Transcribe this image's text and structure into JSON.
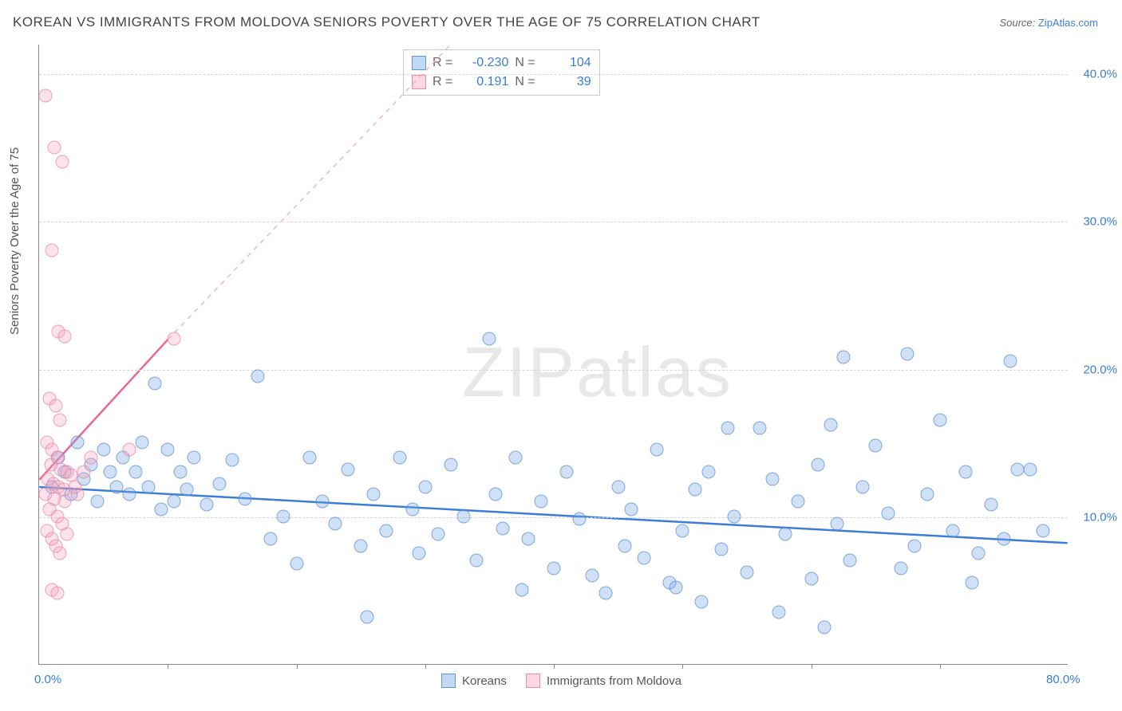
{
  "title": "KOREAN VS IMMIGRANTS FROM MOLDOVA SENIORS POVERTY OVER THE AGE OF 75 CORRELATION CHART",
  "source_prefix": "Source: ",
  "source_link": "ZipAtlas.com",
  "ylabel": "Seniors Poverty Over the Age of 75",
  "watermark_a": "ZIP",
  "watermark_b": "atlas",
  "chart": {
    "type": "scatter",
    "xlim": [
      0,
      80
    ],
    "ylim": [
      0,
      42
    ],
    "ytick_values": [
      10,
      20,
      30,
      40
    ],
    "ytick_labels": [
      "10.0%",
      "20.0%",
      "30.0%",
      "40.0%"
    ],
    "xtick_values": [
      0,
      10,
      20,
      30,
      40,
      50,
      60,
      70,
      80
    ],
    "xtick_labels": [
      "0.0%",
      "",
      "",
      "",
      "",
      "",
      "",
      "",
      "80.0%"
    ],
    "grid_color": "#d5d5d5",
    "background_color": "#ffffff",
    "axis_color": "#888888",
    "tick_color": "#3b7dd8",
    "series": [
      {
        "name": "Koreans",
        "color_fill": "rgba(120,170,230,0.35)",
        "color_stroke": "rgba(90,140,210,0.7)",
        "marker_size": 17,
        "R": "-0.230",
        "N": "104",
        "trend": {
          "x1": 0,
          "y1": 12.0,
          "x2": 80,
          "y2": 8.2,
          "dash": false,
          "color": "#3b7dd8",
          "width": 2.5
        },
        "points": [
          [
            1,
            12
          ],
          [
            1.5,
            14
          ],
          [
            2,
            13
          ],
          [
            2.5,
            11.5
          ],
          [
            3,
            15
          ],
          [
            3.5,
            12.5
          ],
          [
            4,
            13.5
          ],
          [
            4.5,
            11
          ],
          [
            5,
            14.5
          ],
          [
            5.5,
            13
          ],
          [
            6,
            12
          ],
          [
            6.5,
            14
          ],
          [
            7,
            11.5
          ],
          [
            7.5,
            13
          ],
          [
            8,
            15
          ],
          [
            8.5,
            12
          ],
          [
            9,
            19
          ],
          [
            9.5,
            10.5
          ],
          [
            10,
            14.5
          ],
          [
            10.5,
            11
          ],
          [
            11,
            13
          ],
          [
            11.5,
            11.8
          ],
          [
            12,
            14
          ],
          [
            13,
            10.8
          ],
          [
            14,
            12.2
          ],
          [
            15,
            13.8
          ],
          [
            16,
            11.2
          ],
          [
            17,
            19.5
          ],
          [
            18,
            8.5
          ],
          [
            19,
            10
          ],
          [
            20,
            6.8
          ],
          [
            21,
            14
          ],
          [
            22,
            11
          ],
          [
            23,
            9.5
          ],
          [
            24,
            13.2
          ],
          [
            25,
            8
          ],
          [
            25.5,
            3.2
          ],
          [
            26,
            11.5
          ],
          [
            27,
            9
          ],
          [
            28,
            14
          ],
          [
            29,
            10.5
          ],
          [
            29.5,
            7.5
          ],
          [
            30,
            12
          ],
          [
            31,
            8.8
          ],
          [
            32,
            13.5
          ],
          [
            33,
            10
          ],
          [
            34,
            7
          ],
          [
            35,
            22
          ],
          [
            35.5,
            11.5
          ],
          [
            36,
            9.2
          ],
          [
            37,
            14
          ],
          [
            37.5,
            5
          ],
          [
            38,
            8.5
          ],
          [
            39,
            11
          ],
          [
            40,
            6.5
          ],
          [
            41,
            13
          ],
          [
            42,
            9.8
          ],
          [
            43,
            6
          ],
          [
            44,
            4.8
          ],
          [
            45,
            12
          ],
          [
            45.5,
            8
          ],
          [
            46,
            10.5
          ],
          [
            47,
            7.2
          ],
          [
            48,
            14.5
          ],
          [
            49,
            5.5
          ],
          [
            50,
            9
          ],
          [
            51,
            11.8
          ],
          [
            51.5,
            4.2
          ],
          [
            52,
            13
          ],
          [
            53,
            7.8
          ],
          [
            54,
            10
          ],
          [
            55,
            6.2
          ],
          [
            56,
            16
          ],
          [
            57,
            12.5
          ],
          [
            57.5,
            3.5
          ],
          [
            58,
            8.8
          ],
          [
            59,
            11
          ],
          [
            60,
            5.8
          ],
          [
            60.5,
            13.5
          ],
          [
            61,
            2.5
          ],
          [
            61.5,
            16.2
          ],
          [
            62,
            9.5
          ],
          [
            63,
            7
          ],
          [
            64,
            12
          ],
          [
            65,
            14.8
          ],
          [
            66,
            10.2
          ],
          [
            67,
            6.5
          ],
          [
            67.5,
            21
          ],
          [
            68,
            8
          ],
          [
            69,
            11.5
          ],
          [
            70,
            16.5
          ],
          [
            71,
            9
          ],
          [
            72,
            13
          ],
          [
            72.5,
            5.5
          ],
          [
            73,
            7.5
          ],
          [
            74,
            10.8
          ],
          [
            75,
            8.5
          ],
          [
            75.5,
            20.5
          ],
          [
            76,
            13.2
          ],
          [
            78,
            9
          ],
          [
            77,
            13.2
          ],
          [
            62.5,
            20.8
          ],
          [
            49.5,
            5.2
          ],
          [
            53.5,
            16
          ]
        ]
      },
      {
        "name": "Immigrants from Moldova",
        "color_fill": "rgba(245,160,185,0.3)",
        "color_stroke": "rgba(235,130,160,0.7)",
        "marker_size": 17,
        "R": "0.191",
        "N": "39",
        "trend_solid": {
          "x1": 0,
          "y1": 12.5,
          "x2": 10,
          "y2": 22,
          "dash": false,
          "color": "#e86a92",
          "width": 2.5
        },
        "trend_dash": {
          "x1": 10,
          "y1": 22,
          "x2": 32,
          "y2": 42,
          "dash": true,
          "color": "#f0b5c5",
          "width": 1.5
        },
        "points": [
          [
            0.5,
            38.5
          ],
          [
            1.2,
            35
          ],
          [
            1.8,
            34
          ],
          [
            1,
            28
          ],
          [
            1.5,
            22.5
          ],
          [
            2,
            22.2
          ],
          [
            0.8,
            18
          ],
          [
            1.3,
            17.5
          ],
          [
            1.6,
            16.5
          ],
          [
            0.6,
            15
          ],
          [
            1,
            14.5
          ],
          [
            1.4,
            14
          ],
          [
            0.9,
            13.5
          ],
          [
            1.7,
            13.2
          ],
          [
            2.2,
            13
          ],
          [
            0.7,
            12.5
          ],
          [
            1.1,
            12.2
          ],
          [
            1.5,
            12
          ],
          [
            1.9,
            11.8
          ],
          [
            0.5,
            11.5
          ],
          [
            1.2,
            11.2
          ],
          [
            2,
            11
          ],
          [
            2.5,
            12.8
          ],
          [
            0.8,
            10.5
          ],
          [
            1.4,
            10
          ],
          [
            1.8,
            9.5
          ],
          [
            0.6,
            9
          ],
          [
            1,
            8.5
          ],
          [
            2.2,
            8.8
          ],
          [
            1.3,
            8
          ],
          [
            3,
            11.5
          ],
          [
            1.6,
            7.5
          ],
          [
            2.8,
            12
          ],
          [
            1,
            5
          ],
          [
            1.4,
            4.8
          ],
          [
            3.5,
            13
          ],
          [
            4,
            14
          ],
          [
            7,
            14.5
          ],
          [
            10.5,
            22
          ]
        ]
      }
    ]
  },
  "legend": [
    {
      "swatch": "blue",
      "label": "Koreans"
    },
    {
      "swatch": "pink",
      "label": "Immigrants from Moldova"
    }
  ],
  "stats_labels": {
    "R": "R =",
    "N": "N ="
  }
}
